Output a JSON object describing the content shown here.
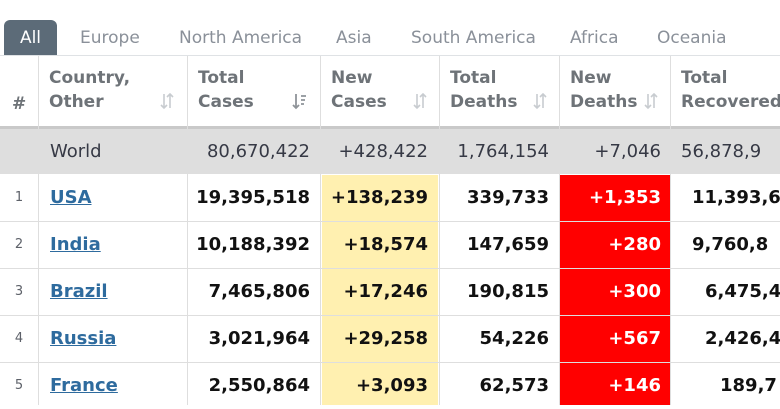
{
  "tabs": [
    {
      "label": "All",
      "active": true
    },
    {
      "label": "Europe",
      "active": false
    },
    {
      "label": "North America",
      "active": false
    },
    {
      "label": "Asia",
      "active": false
    },
    {
      "label": "South America",
      "active": false
    },
    {
      "label": "Africa",
      "active": false
    },
    {
      "label": "Oceania",
      "active": false
    }
  ],
  "columns": {
    "index": "#",
    "country": [
      "Country,",
      "Other"
    ],
    "total_cases": [
      "Total",
      "Cases"
    ],
    "new_cases": [
      "New",
      "Cases"
    ],
    "total_deaths": [
      "Total",
      "Deaths"
    ],
    "new_deaths": [
      "New",
      "Deaths"
    ],
    "total_recovered": [
      "Total",
      "Recovered"
    ]
  },
  "world": {
    "country": "World",
    "total_cases": "80,670,422",
    "new_cases": "+428,422",
    "total_deaths": "1,764,154",
    "new_deaths": "+7,046",
    "total_recovered": "56,878,9"
  },
  "rows": [
    {
      "index": "1",
      "country": "USA",
      "total_cases": "19,395,518",
      "new_cases": "+138,239",
      "total_deaths": "339,733",
      "new_deaths": "+1,353",
      "total_recovered": "11,393,6"
    },
    {
      "index": "2",
      "country": "India",
      "total_cases": "10,188,392",
      "new_cases": "+18,574",
      "total_deaths": "147,659",
      "new_deaths": "+280",
      "total_recovered": "9,760,8"
    },
    {
      "index": "3",
      "country": "Brazil",
      "total_cases": "7,465,806",
      "new_cases": "+17,246",
      "total_deaths": "190,815",
      "new_deaths": "+300",
      "total_recovered": "6,475,4"
    },
    {
      "index": "4",
      "country": "Russia",
      "total_cases": "3,021,964",
      "new_cases": "+29,258",
      "total_deaths": "54,226",
      "new_deaths": "+567",
      "total_recovered": "2,426,4"
    },
    {
      "index": "5",
      "country": "France",
      "total_cases": "2,550,864",
      "new_cases": "+3,093",
      "total_deaths": "62,573",
      "new_deaths": "+146",
      "total_recovered": "189,7"
    }
  ],
  "colors": {
    "tab_active_bg": "#5c6b78",
    "new_cases_bg": "#fff0b0",
    "new_deaths_bg": "#ff0000",
    "link": "#2e6b9e",
    "world_row_bg": "#dedede"
  },
  "icons": {
    "sort": "sort-arrows-icon",
    "sort_active": "sort-desc-icon"
  }
}
